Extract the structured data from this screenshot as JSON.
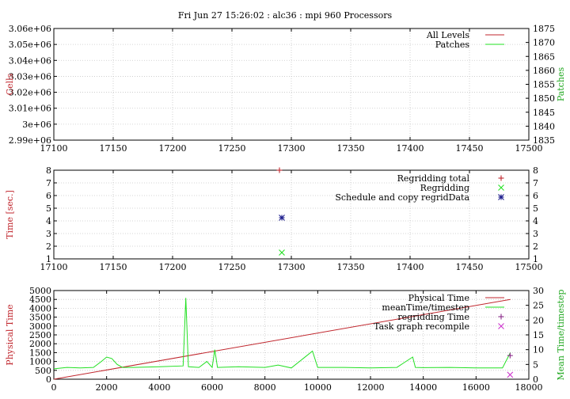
{
  "title": "Fri Jun 27 15:26:02 : alc36 : mpi 960 Processors",
  "colors": {
    "red": "#c0262d",
    "green": "#22e022",
    "blue": "#1c1c8c",
    "purple": "#8a2a8a",
    "magenta": "#cc33cc"
  },
  "chart_data": [
    {
      "type": "line",
      "ylabel": "Cells",
      "y2label": "Patches",
      "xlim": [
        17100,
        17500
      ],
      "ylim": [
        2990000,
        3060000
      ],
      "y2lim": [
        1835,
        1875
      ],
      "xticks": [
        "17100",
        "17150",
        "17200",
        "17250",
        "17300",
        "17350",
        "17400",
        "17450",
        "17500"
      ],
      "yticks": [
        "2.99e+06",
        "3e+06",
        "3.01e+06",
        "3.02e+06",
        "3.03e+06",
        "3.04e+06",
        "3.05e+06",
        "3.06e+06"
      ],
      "y2ticks": [
        "1835",
        "1840",
        "1845",
        "1850",
        "1855",
        "1860",
        "1865",
        "1870",
        "1875"
      ],
      "grid": true,
      "legend_position": "top-right",
      "series": [
        {
          "name": "All Levels",
          "color": "red",
          "x": [],
          "values": []
        },
        {
          "name": "Patches",
          "color": "green",
          "x": [],
          "values": []
        }
      ]
    },
    {
      "type": "scatter",
      "ylabel": "Time [sec.]",
      "xlim": [
        17100,
        17500
      ],
      "ylim": [
        1,
        8
      ],
      "xticks": [
        "17100",
        "17150",
        "17200",
        "17250",
        "17300",
        "17350",
        "17400",
        "17450",
        "17500"
      ],
      "yticks": [
        "1",
        "2",
        "3",
        "4",
        "5",
        "6",
        "7",
        "8"
      ],
      "y2ticks": [
        "1",
        "2",
        "3",
        "4",
        "5",
        "6",
        "7",
        "8"
      ],
      "grid": true,
      "legend_position": "top-right",
      "series": [
        {
          "name": "Regridding total",
          "color": "red",
          "marker": "+",
          "x": [
            17290
          ],
          "values": [
            8.0
          ]
        },
        {
          "name": "Regridding",
          "color": "green",
          "marker": "x",
          "x": [
            17292
          ],
          "values": [
            1.5
          ]
        },
        {
          "name": "Schedule and copy regridData",
          "color": "blue",
          "marker": "*",
          "x": [
            17292
          ],
          "values": [
            4.25
          ]
        }
      ]
    },
    {
      "type": "line",
      "ylabel": "Physical Time",
      "y2label": "Mean Time/timestep",
      "xlim": [
        0,
        18000
      ],
      "ylim": [
        0,
        5000
      ],
      "y2lim": [
        0,
        30
      ],
      "xticks": [
        "0",
        "2000",
        "4000",
        "6000",
        "8000",
        "10000",
        "12000",
        "14000",
        "16000",
        "18000"
      ],
      "yticks": [
        "0",
        "500",
        "1000",
        "1500",
        "2000",
        "2500",
        "3000",
        "3500",
        "4000",
        "4500",
        "5000"
      ],
      "y2ticks": [
        "0",
        "5",
        "10",
        "15",
        "20",
        "25",
        "30"
      ],
      "grid": true,
      "legend_position": "top-right",
      "series": [
        {
          "name": "Physical Time",
          "color": "red",
          "axis": "y",
          "x": [
            0,
            17300
          ],
          "values": [
            0,
            4500
          ]
        },
        {
          "name": "meanTime/timestep",
          "color": "green",
          "axis": "y2",
          "x": [
            0,
            500,
            1000,
            1500,
            1800,
            2000,
            2200,
            2400,
            2600,
            3000,
            4000,
            4900,
            5000,
            5100,
            5500,
            5800,
            6000,
            6100,
            6200,
            7000,
            8000,
            8500,
            9000,
            9800,
            10000,
            11000,
            12000,
            13000,
            13600,
            13700,
            14000,
            15000,
            16000,
            17000,
            17300
          ],
          "values": [
            3.5,
            4,
            3.8,
            4,
            6,
            7.5,
            7,
            5,
            4,
            4,
            4.2,
            4.5,
            27.5,
            4.2,
            4,
            6,
            4,
            10,
            4,
            4.2,
            4,
            4.8,
            3.8,
            9.5,
            4,
            4,
            3.8,
            4,
            7.5,
            4,
            3.9,
            4,
            3.8,
            3.8,
            9
          ]
        },
        {
          "name": "regridding Time",
          "color": "purple",
          "marker": "+",
          "axis": "y2",
          "x": [
            17290
          ],
          "values": [
            8
          ]
        },
        {
          "name": "Task graph recompile",
          "color": "magenta",
          "marker": "x",
          "axis": "y2",
          "x": [
            17290
          ],
          "values": [
            1.5
          ]
        }
      ]
    }
  ]
}
